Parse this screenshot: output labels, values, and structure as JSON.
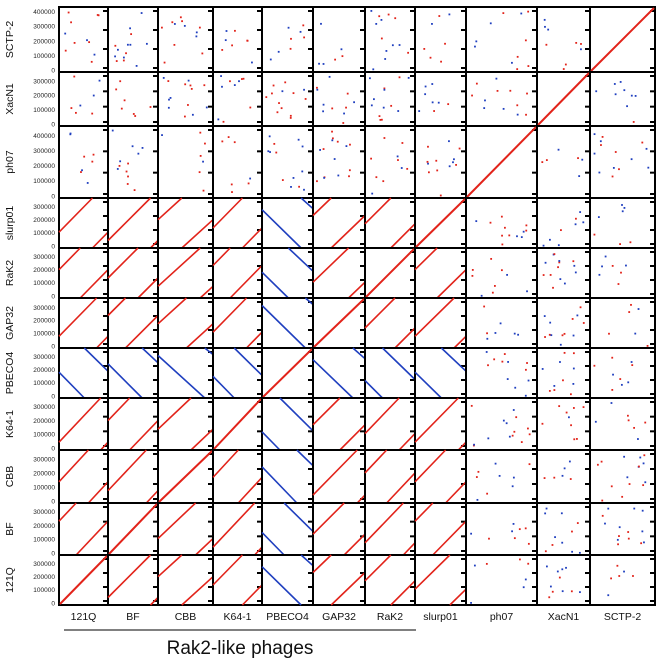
{
  "chart_data": {
    "type": "scatter",
    "title": "",
    "subtitle": "",
    "group_label": "Rak2-like phages",
    "columns": [
      "121Q",
      "BF",
      "CBB",
      "K64-1",
      "PBECO4",
      "GAP32",
      "RaK2",
      "slurp01",
      "ph07",
      "XacN1",
      "SCTP-2"
    ],
    "rows": [
      {
        "name": "SCTP-2",
        "ylim": [
          0,
          420000
        ],
        "ticks": [
          "400000",
          "300000",
          "200000",
          "100000",
          "0"
        ]
      },
      {
        "name": "XacN1",
        "ylim": [
          0,
          350000
        ],
        "ticks": [
          "300000",
          "200000",
          "100000",
          "0"
        ]
      },
      {
        "name": "ph07",
        "ylim": [
          0,
          450000
        ],
        "ticks": [
          "400000",
          "300000",
          "200000",
          "100000",
          "0"
        ]
      },
      {
        "name": "slurp01",
        "ylim": [
          0,
          350000
        ],
        "ticks": [
          "300000",
          "200000",
          "100000",
          "0"
        ]
      },
      {
        "name": "RaK2",
        "ylim": [
          0,
          350000
        ],
        "ticks": [
          "300000",
          "200000",
          "100000",
          "0"
        ]
      },
      {
        "name": "GAP32",
        "ylim": [
          0,
          360000
        ],
        "ticks": [
          "300000",
          "200000",
          "100000",
          "0"
        ]
      },
      {
        "name": "PBECO4",
        "ylim": [
          0,
          350000
        ],
        "ticks": [
          "300000",
          "200000",
          "100000",
          "0"
        ]
      },
      {
        "name": "K64-1",
        "ylim": [
          0,
          350000
        ],
        "ticks": [
          "300000",
          "200000",
          "100000",
          "0"
        ]
      },
      {
        "name": "CBB",
        "ylim": [
          0,
          350000
        ],
        "ticks": [
          "300000",
          "200000",
          "100000",
          "0"
        ]
      },
      {
        "name": "BF",
        "ylim": [
          0,
          350000
        ],
        "ticks": [
          "300000",
          "200000",
          "100000",
          "0"
        ]
      },
      {
        "name": "121Q",
        "ylim": [
          0,
          350000
        ],
        "ticks": [
          "300000",
          "200000",
          "100000",
          "0"
        ]
      }
    ],
    "series_colors": {
      "forward": "#e2231a",
      "reverse": "#1f3fbf"
    }
  }
}
